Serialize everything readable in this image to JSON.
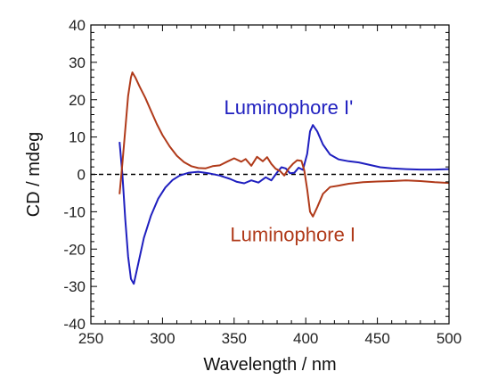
{
  "chart_data": {
    "type": "line",
    "xlabel": "Wavelength / nm",
    "ylabel": "CD / mdeg",
    "xlim": [
      250,
      500
    ],
    "ylim": [
      -40,
      40
    ],
    "xticks": [
      250,
      300,
      350,
      400,
      450,
      500
    ],
    "yticks": [
      -40,
      -30,
      -20,
      -10,
      0,
      10,
      20,
      30,
      40
    ],
    "zero_line": true,
    "grid": false,
    "series": [
      {
        "name": "Luminophore I'",
        "color": "#1f1fbf",
        "points": [
          [
            270,
            8.7
          ],
          [
            272,
            0
          ],
          [
            274,
            -12
          ],
          [
            276,
            -22
          ],
          [
            278,
            -28
          ],
          [
            280,
            -29.3
          ],
          [
            283,
            -24
          ],
          [
            287,
            -17
          ],
          [
            292,
            -11
          ],
          [
            297,
            -6.5
          ],
          [
            302,
            -3.5
          ],
          [
            307,
            -1.5
          ],
          [
            312,
            -0.3
          ],
          [
            318,
            0.4
          ],
          [
            325,
            0.7
          ],
          [
            332,
            0.3
          ],
          [
            340,
            -0.3
          ],
          [
            347,
            -1.2
          ],
          [
            352,
            -2
          ],
          [
            357,
            -2.4
          ],
          [
            362,
            -1.6
          ],
          [
            367,
            -2.2
          ],
          [
            372,
            -0.8
          ],
          [
            376,
            -1.6
          ],
          [
            380,
            0.5
          ],
          [
            383,
            1.9
          ],
          [
            386,
            1.6
          ],
          [
            389,
            0.3
          ],
          [
            392,
            0.4
          ],
          [
            395,
            1.8
          ],
          [
            398,
            1.2
          ],
          [
            401,
            5.5
          ],
          [
            403,
            11.5
          ],
          [
            405,
            13.2
          ],
          [
            408,
            11.5
          ],
          [
            412,
            8
          ],
          [
            417,
            5.3
          ],
          [
            423,
            4
          ],
          [
            430,
            3.5
          ],
          [
            437,
            3.2
          ],
          [
            445,
            2.5
          ],
          [
            452,
            1.9
          ],
          [
            460,
            1.6
          ],
          [
            470,
            1.4
          ],
          [
            480,
            1.3
          ],
          [
            490,
            1.3
          ],
          [
            500,
            1.4
          ]
        ]
      },
      {
        "name": "Luminophore I",
        "color": "#b03a1a",
        "points": [
          [
            270,
            -5.3
          ],
          [
            272,
            3
          ],
          [
            274,
            12
          ],
          [
            276,
            21
          ],
          [
            278,
            26
          ],
          [
            279,
            27.3
          ],
          [
            281,
            26
          ],
          [
            284,
            23.5
          ],
          [
            288,
            20.5
          ],
          [
            292,
            17
          ],
          [
            296,
            13.5
          ],
          [
            300,
            10.5
          ],
          [
            305,
            7.5
          ],
          [
            310,
            5
          ],
          [
            315,
            3.3
          ],
          [
            320,
            2.2
          ],
          [
            325,
            1.7
          ],
          [
            330,
            1.6
          ],
          [
            335,
            2.2
          ],
          [
            340,
            2.4
          ],
          [
            345,
            3.4
          ],
          [
            350,
            4.3
          ],
          [
            355,
            3.4
          ],
          [
            358,
            4.1
          ],
          [
            362,
            2.3
          ],
          [
            366,
            4.7
          ],
          [
            370,
            3.5
          ],
          [
            373,
            4.6
          ],
          [
            376,
            2.8
          ],
          [
            379,
            1.5
          ],
          [
            382,
            0.9
          ],
          [
            385,
            -0.3
          ],
          [
            388,
            1.5
          ],
          [
            391,
            2.8
          ],
          [
            394,
            3.8
          ],
          [
            397,
            3.6
          ],
          [
            399,
            1
          ],
          [
            401,
            -4
          ],
          [
            403,
            -10
          ],
          [
            405,
            -11.3
          ],
          [
            408,
            -8.8
          ],
          [
            412,
            -5.2
          ],
          [
            417,
            -3.4
          ],
          [
            423,
            -3
          ],
          [
            430,
            -2.5
          ],
          [
            440,
            -2.1
          ],
          [
            450,
            -1.9
          ],
          [
            460,
            -1.8
          ],
          [
            470,
            -1.6
          ],
          [
            480,
            -1.8
          ],
          [
            490,
            -2.1
          ],
          [
            500,
            -2.3
          ]
        ]
      }
    ],
    "annotations": [
      {
        "text": "Luminophore I'",
        "x": 388,
        "y": 18,
        "series": 0
      },
      {
        "text": "Luminophore I",
        "x": 391,
        "y": -16,
        "series": 1
      }
    ]
  }
}
